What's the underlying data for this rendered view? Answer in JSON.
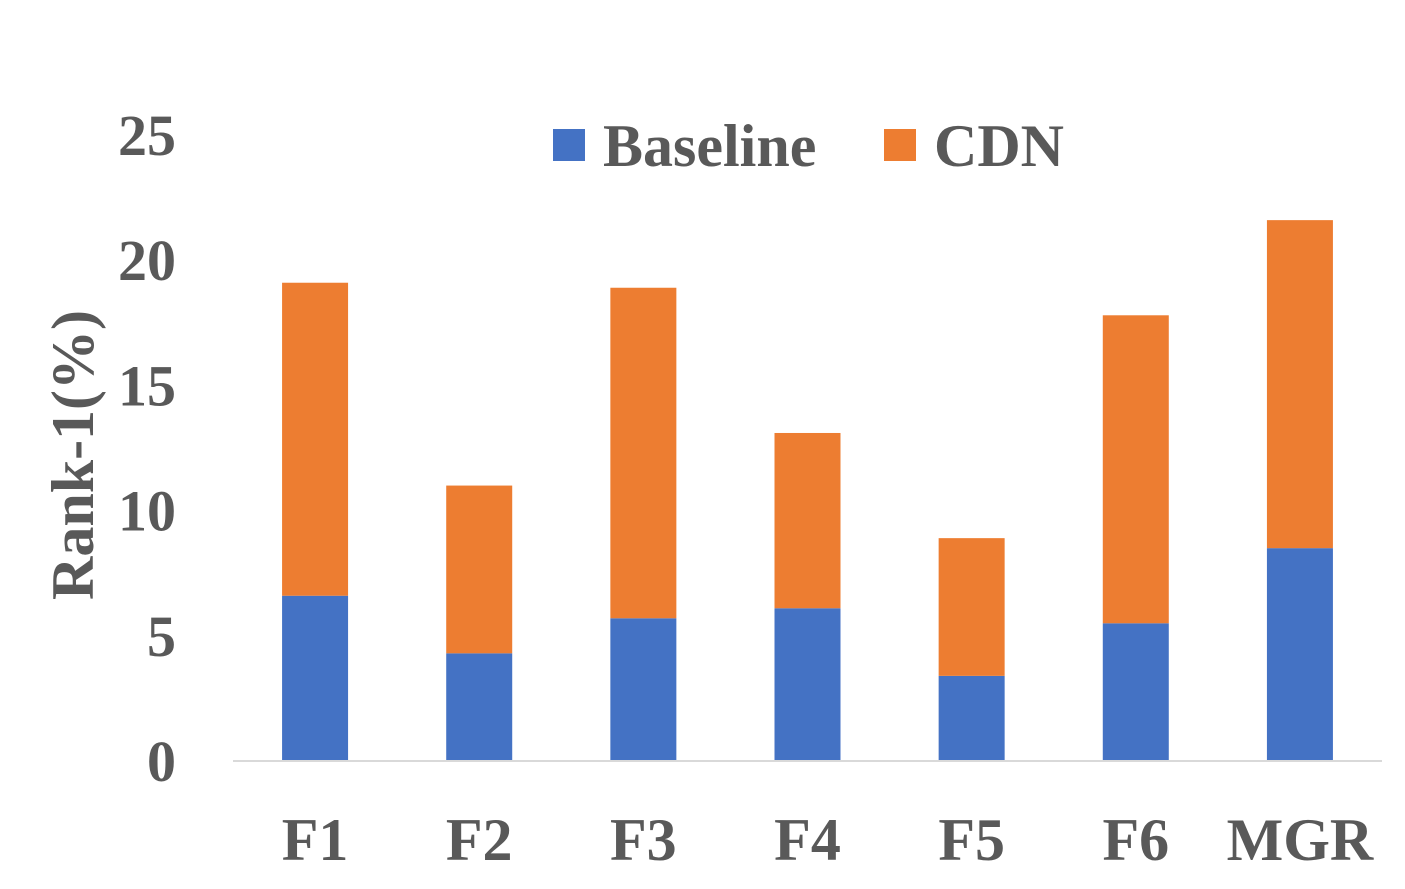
{
  "chart_data": {
    "type": "bar",
    "stacked": true,
    "categories": [
      "F1",
      "F2",
      "F3",
      "F4",
      "F5",
      "F6",
      "MGR"
    ],
    "series": [
      {
        "name": "Baseline",
        "color": "#4472C4",
        "values": [
          6.6,
          4.3,
          5.7,
          6.1,
          3.4,
          5.5,
          8.5
        ]
      },
      {
        "name": "CDN",
        "color": "#ED7D31",
        "values": [
          12.5,
          6.7,
          13.2,
          7.0,
          5.5,
          12.3,
          13.1
        ]
      }
    ],
    "ylabel": "Rank-1(%)",
    "xlabel": "",
    "title": "",
    "ylim": [
      0,
      25
    ],
    "yticks": [
      "0",
      "5",
      "10",
      "15",
      "20",
      "25"
    ],
    "grid": false,
    "legend": "top-center"
  }
}
